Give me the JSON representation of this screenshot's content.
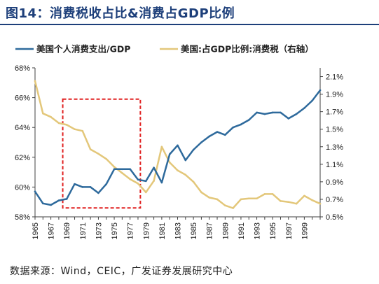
{
  "header": {
    "title": "图14：消费税收占比&消费占GDP比例"
  },
  "source": {
    "text": "数据来源：Wind，CEIC，广发证券发展研究中心"
  },
  "colors": {
    "title": "#1d3f7a",
    "series1": "#2e6a9c",
    "series2": "#e3c77a",
    "highlight_box": "#e02020",
    "axis": "#404040"
  },
  "chart_data": {
    "type": "line",
    "title": "",
    "xlabel": "",
    "ylabel": "",
    "y2label": "",
    "grid": false,
    "legend_position": "top",
    "x_tick_labels": [
      "1965",
      "1967",
      "1969",
      "1971",
      "1973",
      "1975",
      "1977",
      "1979",
      "1981",
      "1983",
      "1985",
      "1987",
      "1989",
      "1991",
      "1993",
      "1995",
      "1997",
      "1999"
    ],
    "xlim": [
      1965,
      2001
    ],
    "ylim": [
      58,
      68
    ],
    "y_tick_labels": [
      "58%",
      "60%",
      "62%",
      "64%",
      "66%",
      "68%"
    ],
    "y2lim": [
      0.5,
      2.2
    ],
    "y2_tick_labels": [
      "0.5%",
      "0.7%",
      "0.9%",
      "1.1%",
      "1.3%",
      "1.5%",
      "1.7%",
      "1.9%",
      "2.1%"
    ],
    "highlight_region": {
      "x": [
        1968.5,
        1978.3
      ],
      "y": [
        58.6,
        65.9
      ]
    },
    "series": [
      {
        "name": "美国个人消费支出/GDP",
        "axis": "left",
        "x": [
          1965,
          1966,
          1967,
          1968,
          1969,
          1970,
          1971,
          1972,
          1973,
          1974,
          1975,
          1976,
          1977,
          1978,
          1979,
          1980,
          1981,
          1982,
          1983,
          1984,
          1985,
          1986,
          1987,
          1988,
          1989,
          1990,
          1991,
          1992,
          1993,
          1994,
          1995,
          1996,
          1997,
          1998,
          1999,
          2000,
          2001
        ],
        "y": [
          59.7,
          58.9,
          58.8,
          59.1,
          59.2,
          60.2,
          60.0,
          60.0,
          59.6,
          60.2,
          61.2,
          61.2,
          61.2,
          60.5,
          60.4,
          61.3,
          60.3,
          62.2,
          62.8,
          61.8,
          62.5,
          63.0,
          63.4,
          63.7,
          63.5,
          64.0,
          64.2,
          64.5,
          65.0,
          64.9,
          65.0,
          65.0,
          64.6,
          64.9,
          65.3,
          65.8,
          66.5
        ]
      },
      {
        "name": "美国:占GDP比例:消费税（右轴）",
        "axis": "right",
        "x": [
          1965,
          1966,
          1967,
          1968,
          1969,
          1970,
          1971,
          1972,
          1973,
          1974,
          1975,
          1976,
          1977,
          1978,
          1979,
          1980,
          1981,
          1982,
          1983,
          1984,
          1985,
          1986,
          1987,
          1988,
          1989,
          1990,
          1991,
          1992,
          1993,
          1994,
          1995,
          1996,
          1997,
          1998,
          1999,
          2000,
          2001
        ],
        "y": [
          2.05,
          1.68,
          1.64,
          1.57,
          1.55,
          1.5,
          1.48,
          1.27,
          1.22,
          1.16,
          1.07,
          1.0,
          0.93,
          0.88,
          0.78,
          0.91,
          1.3,
          1.12,
          1.03,
          0.98,
          0.9,
          0.78,
          0.72,
          0.7,
          0.63,
          0.6,
          0.7,
          0.71,
          0.71,
          0.76,
          0.76,
          0.68,
          0.67,
          0.65,
          0.74,
          0.69,
          0.65
        ]
      }
    ]
  }
}
